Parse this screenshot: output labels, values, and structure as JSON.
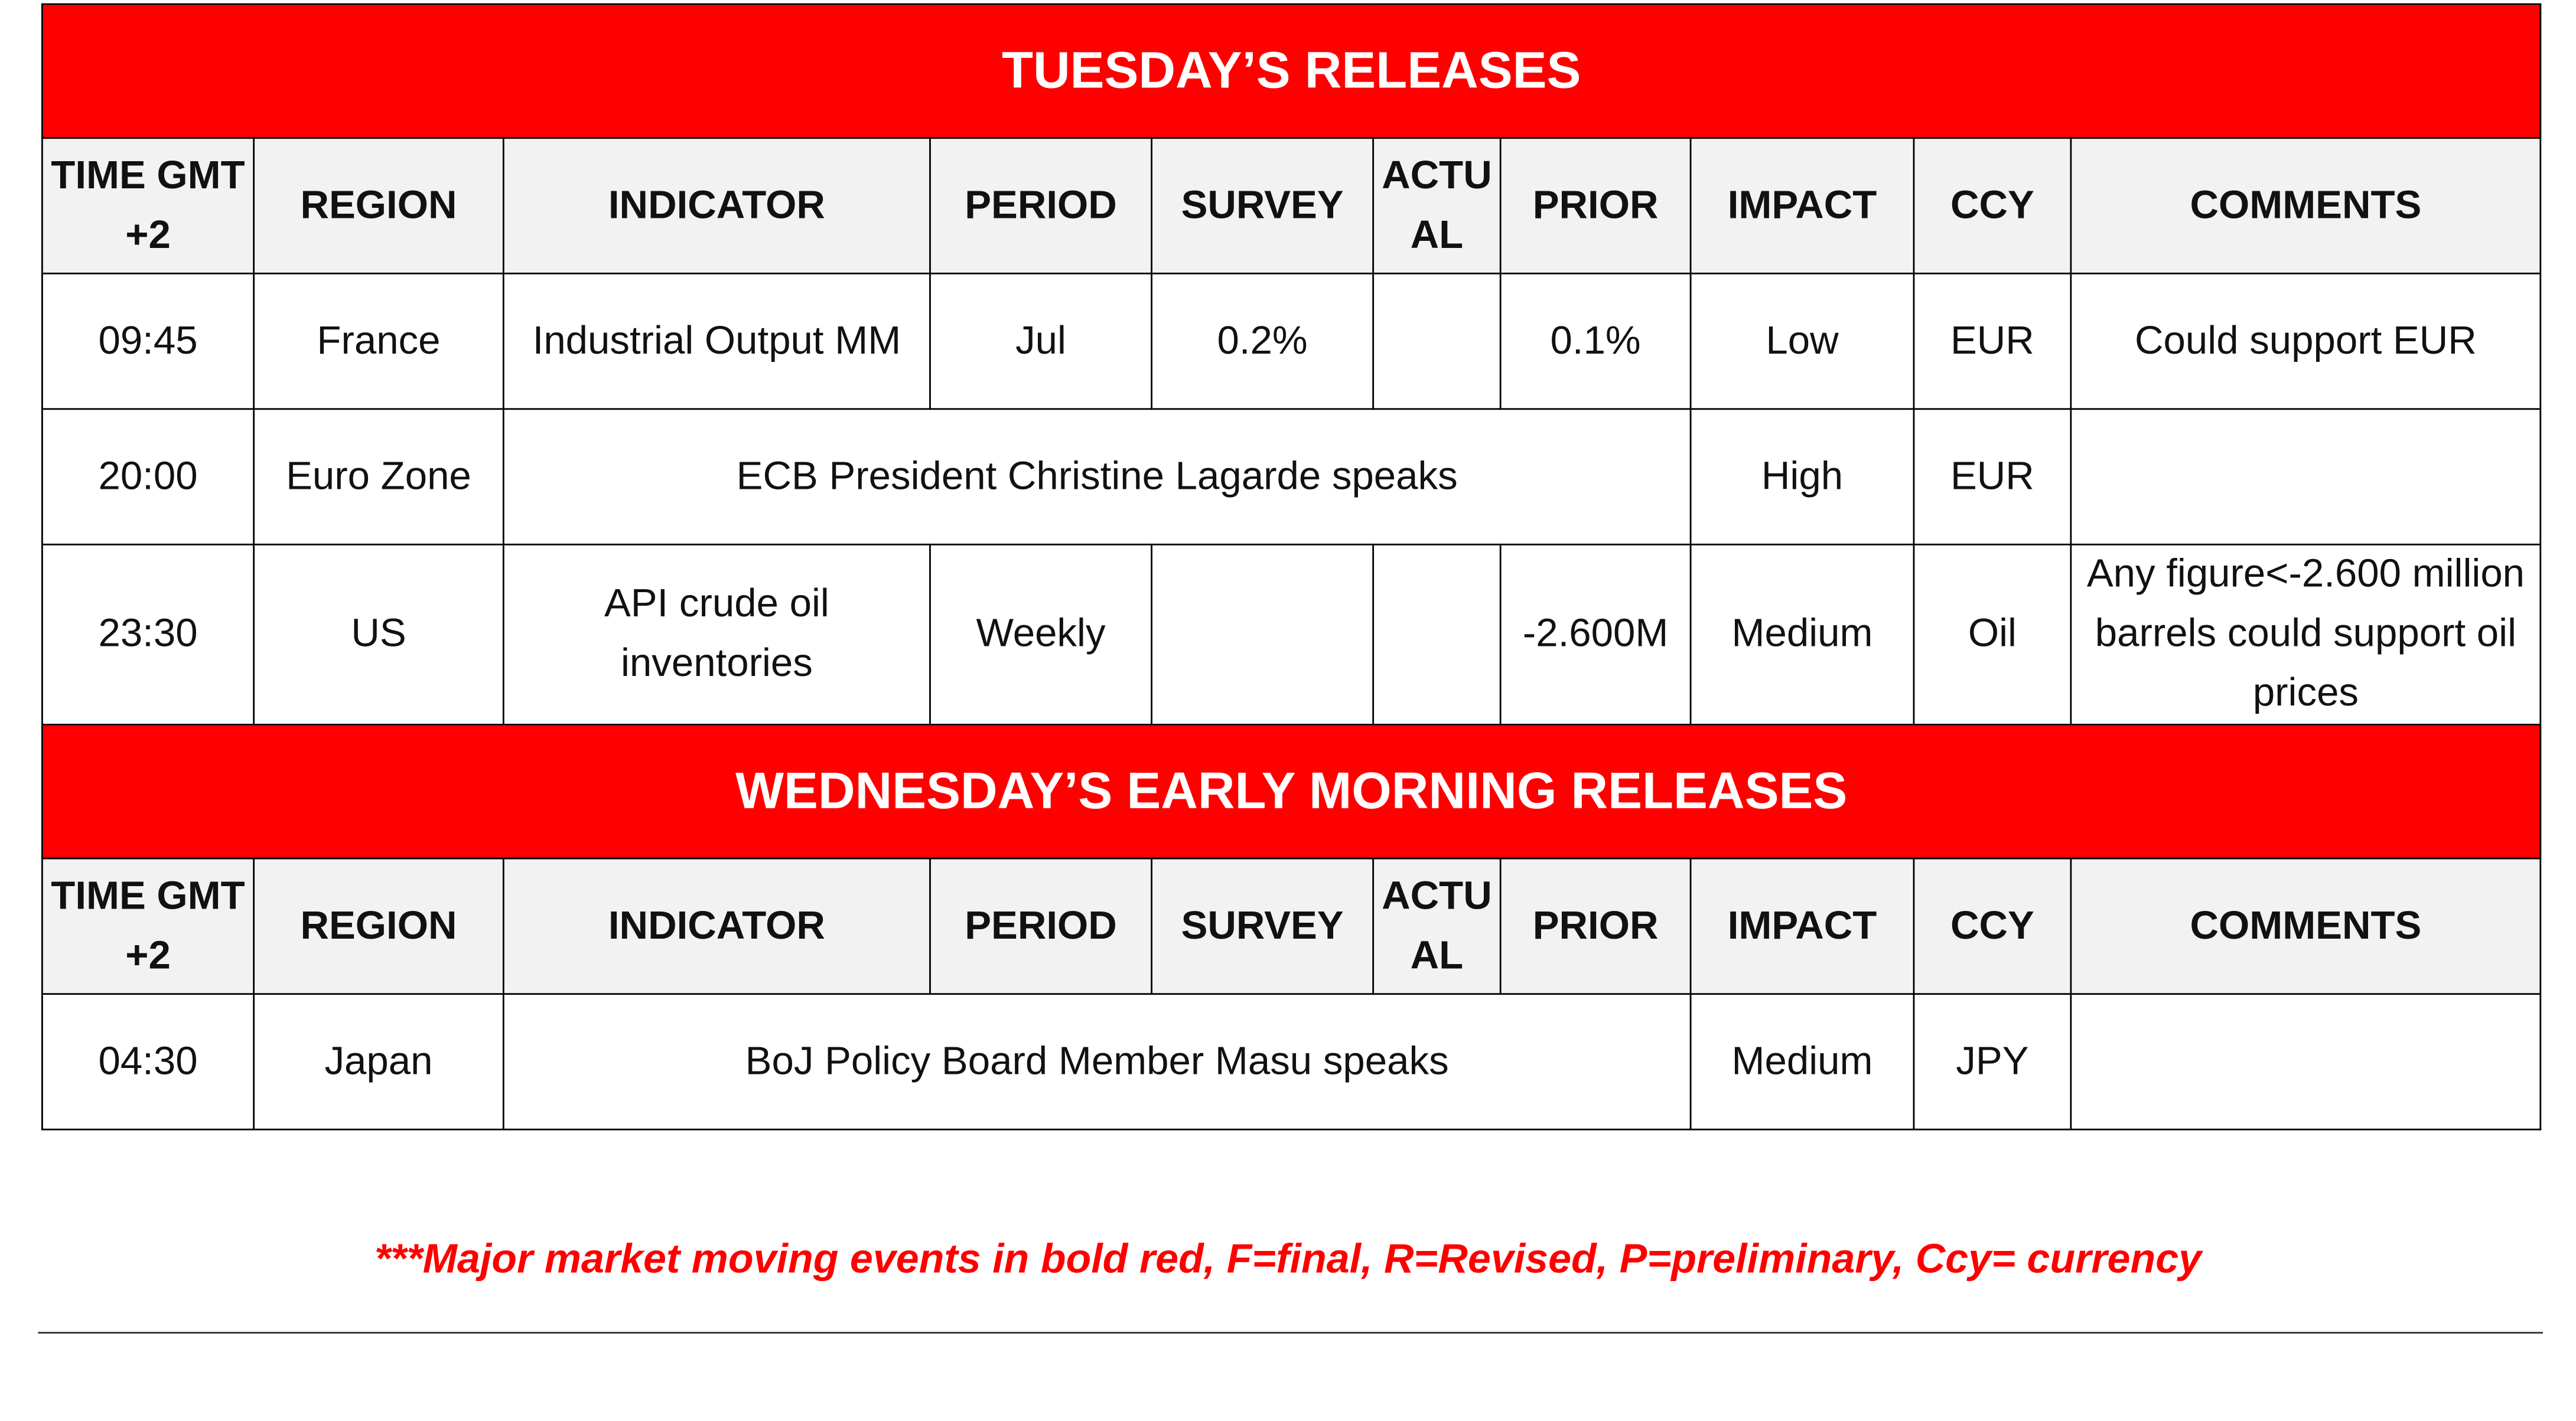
{
  "sections": [
    {
      "title": "TUESDAY’S RELEASES",
      "headers": [
        "TIME GMT+2",
        "REGION",
        "INDICATOR",
        "PERIOD",
        "SURVEY",
        "ACTUAL",
        "PRIOR",
        "IMPACT",
        "CCY",
        "COMMENTS"
      ],
      "rows": [
        {
          "time": "09:45",
          "region": "France",
          "indicator": "Industrial Output MM",
          "period": "Jul",
          "survey": "0.2%",
          "prior": "0.1%",
          "impact": "Low",
          "ccy": "EUR",
          "comments": "Could support EUR"
        },
        {
          "time": "20:00",
          "region": "Euro Zone",
          "event": "ECB President Christine Lagarde speaks",
          "impact": "High",
          "ccy": "EUR"
        },
        {
          "time": "23:30",
          "region": "US",
          "indicator": "API crude oil inventories",
          "period": "Weekly",
          "prior": "-2.600M",
          "impact": "Medium",
          "ccy": "Oil",
          "comments": "Any figure<-2.600 million barrels could support oil prices"
        }
      ]
    },
    {
      "title": "WEDNESDAY’S EARLY MORNING RELEASES",
      "headers": [
        "TIME GMT+2",
        "REGION",
        "INDICATOR",
        "PERIOD",
        "SURVEY",
        "ACTUAL",
        "PRIOR",
        "IMPACT",
        "CCY",
        "COMMENTS"
      ],
      "rows": [
        {
          "time": "04:30",
          "region": "Japan",
          "event": "BoJ Policy Board Member Masu speaks",
          "impact": "Medium",
          "ccy": "JPY"
        }
      ]
    }
  ],
  "footnote": "***Major market moving events in bold red, F=final, R=Revised, P=preliminary, Ccy= currency"
}
